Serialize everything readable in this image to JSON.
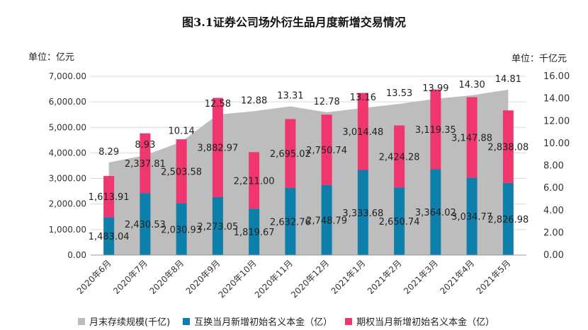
{
  "chart_data": {
    "type": "bar",
    "title": "图3.1证券公司场外衍生品月度新增交易情况",
    "left_unit": "单位：亿元",
    "right_unit": "单位：千亿元",
    "categories": [
      "2020年6月",
      "2020年7月",
      "2020年8月",
      "2020年9月",
      "2020年10月",
      "2020年11月",
      "2020年12月",
      "2021年1月",
      "2021年2月",
      "2021年3月",
      "2021年4月",
      "2021年5月"
    ],
    "left_axis": {
      "min": 0,
      "max": 7000,
      "step": 1000,
      "tick_labels": [
        "0.00",
        "1,000.00",
        "2,000.00",
        "3,000.00",
        "4,000.00",
        "5,000.00",
        "6,000.00",
        "7,000.00"
      ]
    },
    "right_axis": {
      "min": 0,
      "max": 16,
      "step": 2,
      "tick_labels": [
        "0.00",
        "2.00",
        "4.00",
        "6.00",
        "8.00",
        "10.00",
        "12.00",
        "14.00",
        "16.00"
      ]
    },
    "series": [
      {
        "name": "月末存续规模(千亿)",
        "kind": "area",
        "axis": "right",
        "color": "#bdbdbd",
        "values": [
          8.29,
          8.93,
          10.14,
          12.58,
          12.88,
          13.31,
          12.78,
          13.16,
          13.53,
          13.99,
          14.3,
          14.81
        ],
        "labels": [
          "8.29",
          "8.93",
          "10.14",
          "12.58",
          "12.88",
          "13.31",
          "12.78",
          "13.16",
          "13.53",
          "13.99",
          "14.30",
          "14.81"
        ]
      },
      {
        "name": "互换当月新增初始名义本金（亿）",
        "kind": "bar",
        "axis": "left",
        "color": "#0e7fab",
        "values": [
          1483.04,
          2430.53,
          2030.93,
          2273.05,
          1819.67,
          2632.76,
          2748.79,
          3333.68,
          2650.74,
          3364.02,
          3034.77,
          2826.98
        ],
        "labels": [
          "1,483.04",
          "2,430.53",
          "2,030.93",
          "2,273.05",
          "1,819.67",
          "2,632.76",
          "2,748.79",
          "3,333.68",
          "2,650.74",
          "3,364.02",
          "3,034.77",
          "2,826.98"
        ]
      },
      {
        "name": "期权当月新增初始名义本金（亿）",
        "kind": "bar",
        "axis": "left",
        "color": "#f0366f",
        "values": [
          1613.91,
          2337.81,
          2503.58,
          3882.97,
          2211.0,
          2695.02,
          2750.74,
          3014.48,
          2424.28,
          3119.35,
          3147.88,
          2838.08
        ],
        "labels": [
          "1,613.91",
          "2,337.81",
          "2,503.58",
          "3,882.97",
          "2,211.00",
          "2,695.02",
          "2,750.74",
          "3,014.48",
          "2,424.28",
          "3,119.35",
          "3,147.88",
          "2,838.08"
        ]
      }
    ],
    "stacked": true,
    "grid": true,
    "legend_position": "bottom"
  }
}
